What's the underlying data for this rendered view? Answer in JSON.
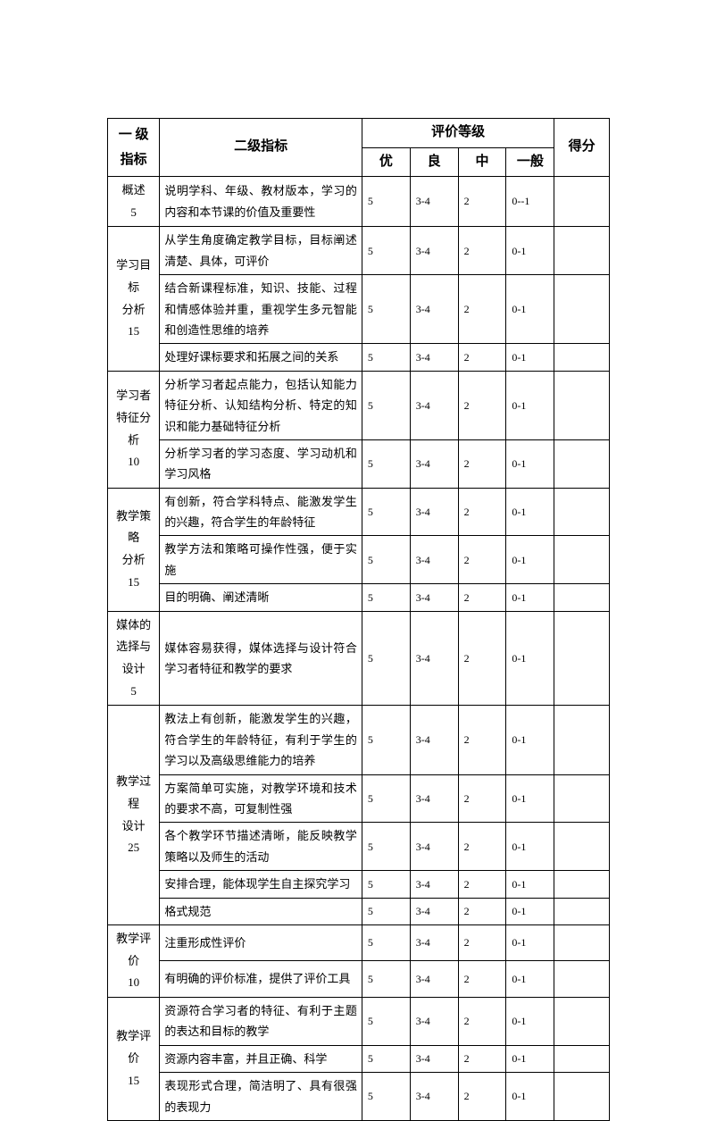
{
  "headers": {
    "level1": "一 级指标",
    "level2": "二级指标",
    "rating": "评价等级",
    "score": "得分",
    "g1": "优",
    "g2": "良",
    "g3": "中",
    "g4": "一般"
  },
  "sections": [
    {
      "title": "概述\n5",
      "rows": [
        {
          "l2": "说明学科、年级、教材版本，学习的内容和本节课的价值及重要性",
          "g1": "5",
          "g2": "3-4",
          "g3": "2",
          "g4": "0--1"
        }
      ]
    },
    {
      "title": "学习目标\n分析\n15",
      "rows": [
        {
          "l2": "从学生角度确定教学目标，目标阐述清楚、具体，可评价",
          "g1": "5",
          "g2": "3-4",
          "g3": "2",
          "g4": "0-1"
        },
        {
          "l2": "结合新课程标准，知识、技能、过程和情感体验并重，重视学生多元智能和创造性思维的培养",
          "g1": "5",
          "g2": "3-4",
          "g3": "2",
          "g4": "0-1"
        },
        {
          "l2": "处理好课标要求和拓展之间的关系",
          "g1": "5",
          "g2": "3-4",
          "g3": "2",
          "g4": "0-1"
        }
      ]
    },
    {
      "title": "学习者特征分析\n10",
      "rows": [
        {
          "l2": "分析学习者起点能力，包括认知能力特征分析、认知结构分析、特定的知识和能力基础特征分析",
          "g1": "5",
          "g2": "3-4",
          "g3": "2",
          "g4": "0-1"
        },
        {
          "l2": "分析学习者的学习态度、学习动机和学习风格",
          "g1": "5",
          "g2": "3-4",
          "g3": "2",
          "g4": "0-1"
        }
      ]
    },
    {
      "title": "教学策略\n分析\n15",
      "rows": [
        {
          "l2": "有创新，符合学科特点、能激发学生的兴趣，符合学生的年龄特征",
          "g1": "5",
          "g2": "3-4",
          "g3": "2",
          "g4": "0-1"
        },
        {
          "l2": "教学方法和策略可操作性强，便于实施",
          "g1": "5",
          "g2": "3-4",
          "g3": "2",
          "g4": "0-1"
        },
        {
          "l2": "目的明确、阐述清晰",
          "g1": "5",
          "g2": "3-4",
          "g3": "2",
          "g4": "0-1"
        }
      ]
    },
    {
      "title": "媒体的选择与设计\n5",
      "rows": [
        {
          "l2": "媒体容易获得，媒体选择与设计符合学习者特征和教学的要求",
          "g1": "5",
          "g2": "3-4",
          "g3": "2",
          "g4": "0-1"
        }
      ]
    },
    {
      "title": "教学过程\n设计\n25",
      "rows": [
        {
          "l2": "教法上有创新，能激发学生的兴趣，符合学生的年龄特征，有利于学生的学习以及高级思维能力的培养",
          "g1": "5",
          "g2": "3-4",
          "g3": "2",
          "g4": "0-1"
        },
        {
          "l2": "方案简单可实施，对教学环境和技术的要求不高，可复制性强",
          "g1": "5",
          "g2": "3-4",
          "g3": "2",
          "g4": "0-1"
        },
        {
          "l2": "各个教学环节描述清晰，能反映教学策略以及师生的活动",
          "g1": "5",
          "g2": "3-4",
          "g3": "2",
          "g4": "0-1"
        },
        {
          "l2": "安排合理，能体现学生自主探究学习",
          "g1": "5",
          "g2": "3-4",
          "g3": "2",
          "g4": "0-1"
        },
        {
          "l2": "格式规范",
          "g1": "5",
          "g2": "3-4",
          "g3": "2",
          "g4": "0-1"
        }
      ]
    },
    {
      "title": "教学评价\n10",
      "rows": [
        {
          "l2": "注重形成性评价",
          "g1": "5",
          "g2": "3-4",
          "g3": "2",
          "g4": "0-1"
        },
        {
          "l2": "有明确的评价标准，提供了评价工具",
          "g1": "5",
          "g2": "3-4",
          "g3": "2",
          "g4": "0-1"
        }
      ]
    },
    {
      "title": "教学评价\n15",
      "rows": [
        {
          "l2": "资源符合学习者的特征、有利于主题的表达和目标的教学",
          "g1": "5",
          "g2": "3-4",
          "g3": "2",
          "g4": "0-1"
        },
        {
          "l2": "资源内容丰富，并且正确、科学",
          "g1": "5",
          "g2": "3-4",
          "g3": "2",
          "g4": "0-1"
        },
        {
          "l2": "表现形式合理，简洁明了、具有很强的表现力",
          "g1": "5",
          "g2": "3-4",
          "g3": "2",
          "g4": "0-1"
        }
      ]
    }
  ]
}
